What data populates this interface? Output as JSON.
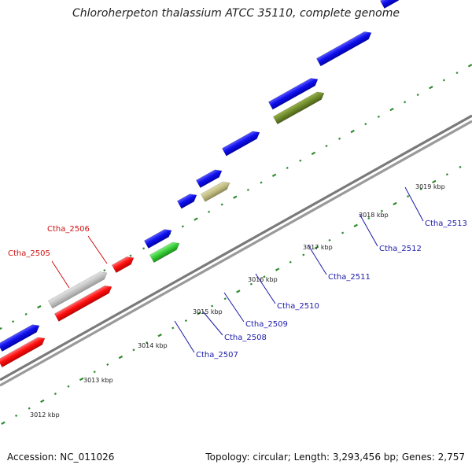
{
  "title": "Chloroherpeton thalassium ATCC 35110, complete genome",
  "accession": "Accession: NC_011026",
  "summary": "Topology: circular; Length: 3,293,456 bp; Genes: 2,757",
  "colors": {
    "backbone": "#8a8a8a",
    "tick": "#2e8b2e",
    "cds_plus": "#1414e6",
    "cds_minus": "#1414e6",
    "red": "#ff1a1a",
    "gray": "#c4c4c4",
    "green": "#3ccc3c",
    "khaki": "#c2bd82",
    "olive": "#6f8a2a",
    "label_blue": "#1a1aaa",
    "label_red": "#d01010"
  },
  "kbp_labels": [
    "3012 kbp",
    "3013 kbp",
    "3014 kbp",
    "3015 kbp",
    "3016 kbp",
    "3017 kbp",
    "3018 kbp",
    "3019 kbp"
  ],
  "features": [
    {
      "name": "Ctha_2505",
      "kind": "gray",
      "labeled": true
    },
    {
      "name": "Ctha_2506",
      "kind": "red",
      "labeled": true
    },
    {
      "name": "Ctha_2507",
      "kind": "green",
      "labeled": true
    },
    {
      "name": "Ctha_2508",
      "kind": "blue",
      "labeled": true
    },
    {
      "name": "Ctha_2509",
      "kind": "khaki",
      "labeled": true
    },
    {
      "name": "Ctha_2510",
      "kind": "blue",
      "labeled": true
    },
    {
      "name": "Ctha_2511",
      "kind": "olive",
      "labeled": true
    },
    {
      "name": "Ctha_2512",
      "kind": "blue",
      "labeled": true
    },
    {
      "name": "Ctha_2513",
      "kind": "blue",
      "labeled": true
    }
  ]
}
